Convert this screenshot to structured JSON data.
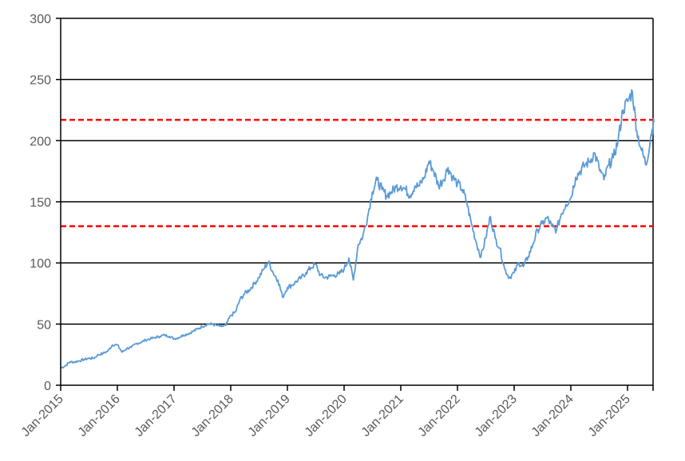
{
  "chart_data": {
    "type": "line",
    "title": "",
    "xlabel": "",
    "ylabel": "",
    "ylim": [
      0,
      300
    ],
    "yticks": [
      0,
      50,
      100,
      150,
      200,
      250,
      300
    ],
    "x_tick_labels": [
      "Jan-2015",
      "Jan-2016",
      "Jan-2017",
      "Jan-2018",
      "Jan-2019",
      "Jan-2020",
      "Jan-2021",
      "Jan-2022",
      "Jan-2023",
      "Jan-2024",
      "Jan-2025"
    ],
    "grid": "horizontal major gridlines on",
    "legend": "none",
    "series": [
      {
        "color": "#5b9bd5",
        "points": [
          [
            "2015-01-01",
            14
          ],
          [
            "2015-02-01",
            16
          ],
          [
            "2015-03-01",
            19
          ],
          [
            "2015-04-01",
            19
          ],
          [
            "2015-05-01",
            20
          ],
          [
            "2015-06-01",
            21
          ],
          [
            "2015-07-01",
            22
          ],
          [
            "2015-08-01",
            22
          ],
          [
            "2015-09-01",
            25
          ],
          [
            "2015-10-01",
            26
          ],
          [
            "2015-11-01",
            28
          ],
          [
            "2015-12-01",
            33
          ],
          [
            "2016-01-01",
            33
          ],
          [
            "2016-02-01",
            27
          ],
          [
            "2016-03-01",
            30
          ],
          [
            "2016-04-01",
            31
          ],
          [
            "2016-05-01",
            34
          ],
          [
            "2016-06-01",
            35
          ],
          [
            "2016-07-01",
            37
          ],
          [
            "2016-08-01",
            38
          ],
          [
            "2016-09-01",
            39
          ],
          [
            "2016-10-01",
            40
          ],
          [
            "2016-11-01",
            41
          ],
          [
            "2016-12-01",
            40
          ],
          [
            "2017-01-01",
            38
          ],
          [
            "2017-02-01",
            39
          ],
          [
            "2017-03-01",
            41
          ],
          [
            "2017-04-01",
            42
          ],
          [
            "2017-05-01",
            44
          ],
          [
            "2017-06-01",
            46
          ],
          [
            "2017-07-01",
            48
          ],
          [
            "2017-08-01",
            50
          ],
          [
            "2017-09-01",
            50
          ],
          [
            "2017-10-01",
            49
          ],
          [
            "2017-11-01",
            48
          ],
          [
            "2017-12-01",
            49
          ],
          [
            "2018-01-01",
            57
          ],
          [
            "2018-02-01",
            60
          ],
          [
            "2018-03-01",
            70
          ],
          [
            "2018-04-01",
            75
          ],
          [
            "2018-05-01",
            78
          ],
          [
            "2018-06-01",
            83
          ],
          [
            "2018-07-01",
            88
          ],
          [
            "2018-08-01",
            95
          ],
          [
            "2018-09-01",
            101
          ],
          [
            "2018-10-01",
            92
          ],
          [
            "2018-11-01",
            86
          ],
          [
            "2018-12-01",
            72
          ],
          [
            "2019-01-01",
            80
          ],
          [
            "2019-02-01",
            82
          ],
          [
            "2019-03-01",
            85
          ],
          [
            "2019-04-01",
            88
          ],
          [
            "2019-05-01",
            92
          ],
          [
            "2019-06-01",
            96
          ],
          [
            "2019-07-01",
            99
          ],
          [
            "2019-08-01",
            90
          ],
          [
            "2019-09-01",
            88
          ],
          [
            "2019-10-01",
            89
          ],
          [
            "2019-11-01",
            90
          ],
          [
            "2019-12-01",
            91
          ],
          [
            "2020-01-01",
            95
          ],
          [
            "2020-02-01",
            104
          ],
          [
            "2020-03-01",
            86
          ],
          [
            "2020-04-01",
            115
          ],
          [
            "2020-05-01",
            122
          ],
          [
            "2020-06-01",
            138
          ],
          [
            "2020-07-01",
            158
          ],
          [
            "2020-08-01",
            168
          ],
          [
            "2020-09-01",
            160
          ],
          [
            "2020-10-01",
            155
          ],
          [
            "2020-11-01",
            158
          ],
          [
            "2020-12-01",
            162
          ],
          [
            "2021-01-01",
            163
          ],
          [
            "2021-02-01",
            160
          ],
          [
            "2021-03-01",
            155
          ],
          [
            "2021-04-01",
            163
          ],
          [
            "2021-05-01",
            163
          ],
          [
            "2021-06-01",
            170
          ],
          [
            "2021-07-01",
            183
          ],
          [
            "2021-08-01",
            175
          ],
          [
            "2021-09-01",
            163
          ],
          [
            "2021-10-01",
            168
          ],
          [
            "2021-11-01",
            178
          ],
          [
            "2021-12-01",
            170
          ],
          [
            "2022-01-01",
            165
          ],
          [
            "2022-02-01",
            160
          ],
          [
            "2022-03-01",
            150
          ],
          [
            "2022-04-01",
            132
          ],
          [
            "2022-05-01",
            117
          ],
          [
            "2022-06-01",
            105
          ],
          [
            "2022-07-01",
            120
          ],
          [
            "2022-08-01",
            138
          ],
          [
            "2022-09-01",
            120
          ],
          [
            "2022-10-01",
            112
          ],
          [
            "2022-11-01",
            95
          ],
          [
            "2022-12-01",
            88
          ],
          [
            "2023-01-01",
            92
          ],
          [
            "2023-02-01",
            100
          ],
          [
            "2023-03-01",
            97
          ],
          [
            "2023-04-01",
            105
          ],
          [
            "2023-05-01",
            115
          ],
          [
            "2023-06-01",
            127
          ],
          [
            "2023-07-01",
            132
          ],
          [
            "2023-08-01",
            137
          ],
          [
            "2023-09-01",
            130
          ],
          [
            "2023-10-01",
            127
          ],
          [
            "2023-11-01",
            140
          ],
          [
            "2023-12-01",
            148
          ],
          [
            "2024-01-01",
            153
          ],
          [
            "2024-02-01",
            170
          ],
          [
            "2024-03-01",
            175
          ],
          [
            "2024-04-01",
            180
          ],
          [
            "2024-05-01",
            183
          ],
          [
            "2024-06-01",
            190
          ],
          [
            "2024-07-01",
            178
          ],
          [
            "2024-08-01",
            168
          ],
          [
            "2024-09-01",
            180
          ],
          [
            "2024-10-01",
            186
          ],
          [
            "2024-11-01",
            200
          ],
          [
            "2024-12-01",
            225
          ],
          [
            "2025-01-01",
            232
          ],
          [
            "2025-02-01",
            240
          ],
          [
            "2025-03-01",
            208
          ],
          [
            "2025-04-01",
            192
          ],
          [
            "2025-05-01",
            180
          ],
          [
            "2025-06-01",
            205
          ],
          [
            "2025-06-20",
            215
          ]
        ]
      }
    ],
    "reference_lines": [
      {
        "y": 217,
        "color": "#ff0000",
        "style": "dashed"
      },
      {
        "y": 130,
        "color": "#ff0000",
        "style": "dashed"
      }
    ],
    "colors": {
      "gridline": "#000000",
      "axis": "#000000",
      "tick_label": "#595959",
      "series": "#5b9bd5",
      "reference": "#ff0000"
    }
  }
}
